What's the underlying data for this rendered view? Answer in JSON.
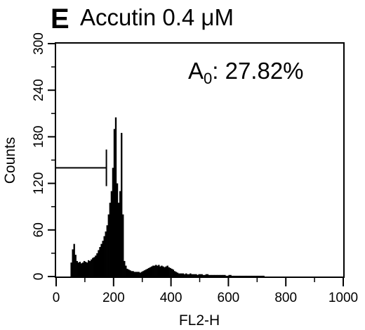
{
  "panel": {
    "letter": "E",
    "title": "Accutin 0.4 μM"
  },
  "annotation": {
    "prefix": "A",
    "subscript": "0",
    "suffix": ": 27.82%"
  },
  "chart_data": {
    "type": "histogram",
    "title": "Accutin 0.4 μM",
    "xlabel": "FL2-H",
    "ylabel": "Counts",
    "xlim": [
      0,
      1000
    ],
    "ylim": [
      0,
      300
    ],
    "xticks": [
      0,
      200,
      400,
      600,
      800,
      1000
    ],
    "yticks": [
      0,
      60,
      120,
      180,
      240,
      300
    ],
    "grid": false,
    "gate": {
      "x_start": 0,
      "x_end": 175,
      "y": 140
    },
    "series": [
      {
        "x": [
          50,
          55,
          60,
          65,
          70,
          75,
          80,
          85,
          90,
          95,
          100,
          105,
          110,
          115,
          120,
          125,
          130,
          135,
          140,
          145,
          150,
          155,
          160,
          165,
          170,
          175,
          180,
          185,
          190,
          195,
          200,
          205,
          210,
          215,
          220,
          225,
          230,
          235,
          240,
          245,
          250,
          255,
          260,
          265,
          270,
          275,
          280,
          285,
          290,
          295,
          300,
          305,
          310,
          315,
          320,
          325,
          330,
          335,
          340,
          345,
          350,
          355,
          360,
          365,
          370,
          375,
          380,
          385,
          390,
          395,
          400,
          405,
          410,
          415,
          420,
          425,
          430,
          435,
          440,
          445,
          450,
          455,
          460,
          465,
          470,
          475,
          480,
          485,
          490,
          495,
          500,
          510,
          520,
          530,
          540,
          550,
          560,
          570,
          580,
          590,
          600,
          610,
          620,
          640,
          660,
          680,
          700,
          720
        ],
        "values": [
          18,
          35,
          42,
          28,
          20,
          18,
          19,
          17,
          18,
          20,
          19,
          18,
          21,
          20,
          22,
          24,
          25,
          27,
          30,
          34,
          38,
          42,
          46,
          52,
          58,
          66,
          80,
          95,
          110,
          140,
          190,
          205,
          120,
          95,
          110,
          185,
          80,
          20,
          14,
          10,
          9,
          8,
          7,
          7,
          6,
          6,
          6,
          6,
          5,
          6,
          7,
          8,
          9,
          10,
          11,
          12,
          13,
          14,
          14,
          15,
          14,
          15,
          13,
          14,
          13,
          12,
          13,
          14,
          12,
          11,
          10,
          9,
          7,
          6,
          5,
          4,
          4,
          4,
          4,
          3,
          4,
          3,
          3,
          4,
          3,
          3,
          3,
          3,
          2,
          3,
          3,
          2,
          3,
          2,
          2,
          2,
          2,
          2,
          2,
          1,
          2,
          1,
          1,
          1,
          1,
          1,
          1,
          1
        ]
      }
    ]
  }
}
